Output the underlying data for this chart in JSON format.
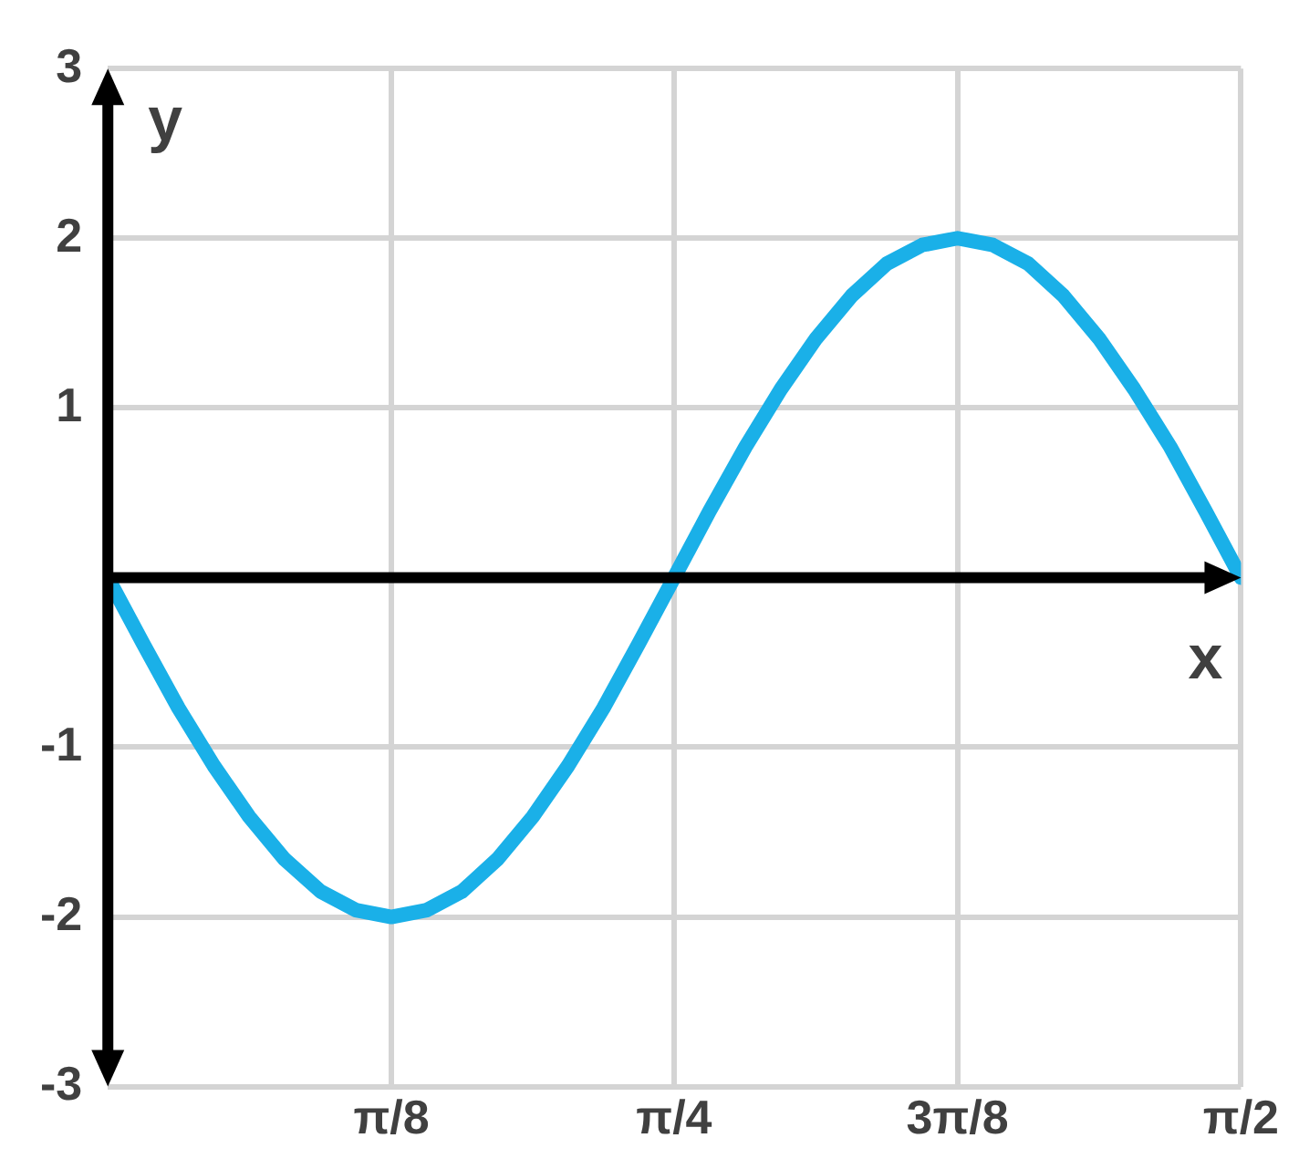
{
  "chart_data": {
    "type": "line",
    "xlabel": "x",
    "ylabel": "y",
    "x": [
      0,
      0.049,
      0.098,
      0.147,
      0.196,
      0.245,
      0.295,
      0.344,
      0.393,
      0.442,
      0.491,
      0.54,
      0.589,
      0.638,
      0.687,
      0.736,
      0.785,
      0.834,
      0.884,
      0.933,
      0.982,
      1.031,
      1.08,
      1.129,
      1.178,
      1.227,
      1.276,
      1.325,
      1.374,
      1.423,
      1.473,
      1.522,
      1.571
    ],
    "series": [
      {
        "color": "#1ab0e8",
        "values": [
          0,
          -0.39,
          -0.77,
          -1.11,
          -1.41,
          -1.66,
          -1.85,
          -1.96,
          -2,
          -1.96,
          -1.85,
          -1.66,
          -1.41,
          -1.11,
          -0.77,
          -0.39,
          0,
          0.39,
          0.77,
          1.11,
          1.41,
          1.66,
          1.85,
          1.96,
          2,
          1.96,
          1.85,
          1.66,
          1.41,
          1.11,
          0.77,
          0.39,
          0
        ]
      }
    ],
    "xlim": [
      0,
      1.571
    ],
    "xticks": [
      {
        "value": 0.393,
        "label": "π/8"
      },
      {
        "value": 0.785,
        "label": "π/4"
      },
      {
        "value": 1.178,
        "label": "3π/8"
      },
      {
        "value": 1.571,
        "label": "π/2"
      }
    ],
    "ylim": [
      -3,
      3
    ],
    "yticks": [
      -3,
      -2,
      -1,
      {
        "value": 0,
        "label": null
      },
      1,
      2,
      3
    ],
    "grid": true,
    "marker": "none",
    "line_style": "solid"
  }
}
